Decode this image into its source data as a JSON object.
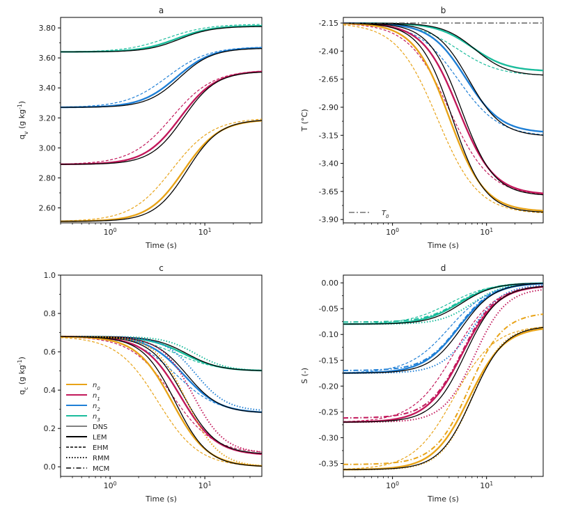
{
  "colors": {
    "n0": "#e8a317",
    "n1": "#c2185b",
    "n2": "#1e7fd6",
    "n3": "#1abc9c",
    "black": "#000000",
    "t0": "#555555"
  },
  "chart_data": [
    {
      "id": "a",
      "type": "line",
      "title": "a",
      "xlabel": "Time (s)",
      "ylabel": "q_v (g kg^-1)",
      "xscale": "log",
      "xlim": [
        0.3,
        40
      ],
      "ylim": [
        2.5,
        3.87
      ],
      "yticks": [
        "2.60",
        "2.80",
        "3.00",
        "3.20",
        "3.40",
        "3.60",
        "3.80"
      ],
      "ytick_values": [
        2.6,
        2.8,
        3.0,
        3.2,
        3.4,
        3.6,
        3.8
      ],
      "xticks": [
        1,
        10
      ],
      "groups": [
        {
          "color": "n3",
          "start": 3.64,
          "end": 3.82,
          "lem_end": 3.815,
          "dns_end": 3.81,
          "ehm_end": 3.825,
          "mid": 5,
          "ehm_mid": 4
        },
        {
          "color": "n2",
          "start": 3.27,
          "end": 3.67,
          "lem_end": 3.67,
          "dns_end": 3.665,
          "ehm_end": 3.675,
          "mid": 5,
          "ehm_mid": 4
        },
        {
          "color": "n1",
          "start": 2.89,
          "end": 3.52,
          "lem_end": 3.515,
          "dns_end": 3.51,
          "ehm_end": 3.52,
          "mid": 5.5,
          "ehm_mid": 4.5
        },
        {
          "color": "n0",
          "start": 2.51,
          "end": 3.2,
          "lem_end": 3.19,
          "dns_end": 3.19,
          "ehm_end": 3.2,
          "mid": 6,
          "ehm_mid": 4.5
        }
      ]
    },
    {
      "id": "b",
      "type": "line",
      "title": "b",
      "xlabel": "Time (s)",
      "ylabel": "T (°C)",
      "xscale": "log",
      "xlim": [
        0.3,
        40
      ],
      "ylim": [
        -3.93,
        -2.1
      ],
      "yticks": [
        "-2.15",
        "-2.40",
        "-2.65",
        "-2.90",
        "-3.15",
        "-3.40",
        "-3.65",
        "-3.90"
      ],
      "ytick_values": [
        -2.15,
        -2.4,
        -2.65,
        -2.9,
        -3.15,
        -3.4,
        -3.65,
        -3.9
      ],
      "xticks": [
        1,
        10
      ],
      "t0_value": -2.15,
      "t0_label": "T_0",
      "groups": [
        {
          "color": "n3",
          "start": -2.15,
          "end": -2.62,
          "lem_end": -2.58,
          "dns_end": -2.62,
          "ehm_end": -2.62,
          "mid": 7,
          "ehm_mid": 5
        },
        {
          "color": "n2",
          "start": -2.15,
          "end": -3.16,
          "lem_end": -3.13,
          "dns_end": -3.16,
          "ehm_end": -3.16,
          "mid": 6,
          "ehm_mid": 5
        },
        {
          "color": "n1",
          "start": -2.15,
          "end": -3.69,
          "lem_end": -3.68,
          "dns_end": -3.69,
          "ehm_end": -3.69,
          "mid": 5,
          "ehm_mid": 4
        },
        {
          "color": "n0",
          "start": -2.15,
          "end": -3.84,
          "lem_end": -3.83,
          "dns_end": -3.84,
          "ehm_end": -3.85,
          "mid": 4,
          "ehm_mid": 3
        }
      ]
    },
    {
      "id": "c",
      "type": "line",
      "title": "c",
      "xlabel": "Time (s)",
      "ylabel": "q_c (g kg^-1)",
      "xscale": "log",
      "xlim": [
        0.3,
        40
      ],
      "ylim": [
        -0.05,
        1.0
      ],
      "yticks": [
        "0.0",
        "0.2",
        "0.4",
        "0.6",
        "0.8",
        "1.0"
      ],
      "ytick_values": [
        0.0,
        0.2,
        0.4,
        0.6,
        0.8,
        1.0
      ],
      "xticks": [
        1,
        10
      ],
      "groups": [
        {
          "color": "n3",
          "start": 0.68,
          "end": 0.5,
          "lem_end": 0.5,
          "dns_end": 0.5,
          "ehm_end": 0.5,
          "rmm_end": 0.5,
          "mid": 6,
          "ehm_mid": 5,
          "rmm_mid": 8
        },
        {
          "color": "n2",
          "start": 0.68,
          "end": 0.28,
          "lem_end": 0.28,
          "dns_end": 0.28,
          "ehm_end": 0.28,
          "rmm_end": 0.29,
          "mid": 6,
          "ehm_mid": 5,
          "rmm_mid": 8
        },
        {
          "color": "n1",
          "start": 0.68,
          "end": 0.06,
          "lem_end": 0.06,
          "dns_end": 0.065,
          "ehm_end": 0.07,
          "rmm_end": 0.07,
          "mid": 5.5,
          "ehm_mid": 4.5,
          "rmm_mid": 7.5
        },
        {
          "color": "n0",
          "start": 0.68,
          "end": 0.0,
          "lem_end": 0.0,
          "dns_end": 0.0,
          "ehm_end": 0.0,
          "rmm_end": 0.0,
          "mid": 4.5,
          "ehm_mid": 3.2,
          "rmm_mid": 6.5
        }
      ],
      "legend": {
        "position": "lower-left",
        "entries": [
          {
            "label": "n_0",
            "color": "n0",
            "style": "solid"
          },
          {
            "label": "n_1",
            "color": "n1",
            "style": "solid"
          },
          {
            "label": "n_2",
            "color": "n2",
            "style": "solid"
          },
          {
            "label": "n_3",
            "color": "n3",
            "style": "solid"
          },
          {
            "label": "DNS",
            "color": "black",
            "style": "thin"
          },
          {
            "label": "LEM",
            "color": "black",
            "style": "solid"
          },
          {
            "label": "EHM",
            "color": "black",
            "style": "dashed"
          },
          {
            "label": "RMM",
            "color": "black",
            "style": "dotted"
          },
          {
            "label": "MCM",
            "color": "black",
            "style": "dashdot"
          }
        ]
      }
    },
    {
      "id": "d",
      "type": "line",
      "title": "d",
      "xlabel": "Time (s)",
      "ylabel": "S (-)",
      "xscale": "log",
      "xlim": [
        0.3,
        40
      ],
      "ylim": [
        -0.375,
        0.015
      ],
      "yticks": [
        "0.00",
        "-0.05",
        "-0.10",
        "-0.15",
        "-0.20",
        "-0.25",
        "-0.30",
        "-0.35"
      ],
      "ytick_values": [
        0.0,
        -0.05,
        -0.1,
        -0.15,
        -0.2,
        -0.25,
        -0.3,
        -0.35
      ],
      "xticks": [
        1,
        10
      ],
      "groups": [
        {
          "color": "n3",
          "start": -0.08,
          "end": 0.0,
          "lem_end": 0.0,
          "dns_end": 0.0,
          "ehm_end": 0.0,
          "rmm_end": 0.0,
          "mcm_start": -0.076,
          "mid": 5,
          "ehm_mid": 4,
          "rmm_mid": 7
        },
        {
          "color": "n2",
          "start": -0.175,
          "end": 0.0,
          "lem_end": 0.0,
          "dns_end": 0.0,
          "ehm_end": 0.0,
          "rmm_end": -0.003,
          "mcm_start": -0.17,
          "mid": 5,
          "ehm_mid": 4,
          "rmm_mid": 7
        },
        {
          "color": "n1",
          "start": -0.27,
          "end": -0.005,
          "lem_end": -0.005,
          "dns_end": -0.005,
          "ehm_end": -0.003,
          "rmm_end": -0.01,
          "mcm_start": -0.262,
          "mid": 5.5,
          "ehm_mid": 4.5,
          "rmm_mid": 7.5
        },
        {
          "color": "n0",
          "start": -0.362,
          "end": -0.085,
          "lem_end": -0.085,
          "dns_end": -0.083,
          "ehm_end": -0.082,
          "rmm_end": -0.083,
          "mcm_start": -0.352,
          "mcm_end": -0.057,
          "mid": 6.5,
          "ehm_mid": 4.5,
          "rmm_mid": 7
        }
      ]
    }
  ]
}
